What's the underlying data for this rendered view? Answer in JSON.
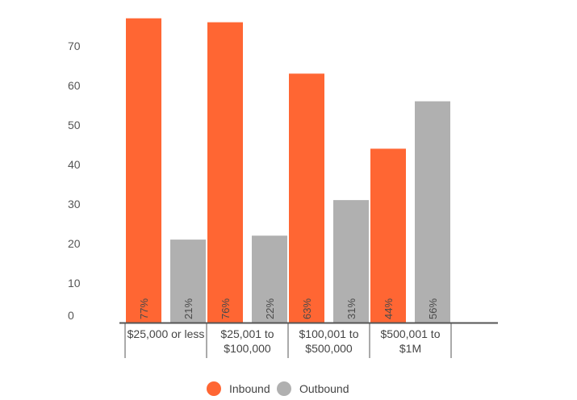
{
  "chart_data": {
    "type": "bar",
    "categories": [
      [
        "$25,000 or less"
      ],
      [
        "$25,001 to",
        "$100,000"
      ],
      [
        "$100,001 to",
        "$500,000"
      ],
      [
        "$500,001 to",
        "$1M"
      ]
    ],
    "series": [
      {
        "name": "Inbound",
        "values": [
          77,
          76,
          63,
          44
        ],
        "labels": [
          "77%",
          "76%",
          "63%",
          "44%"
        ],
        "color": "#ff6633"
      },
      {
        "name": "Outbound",
        "values": [
          21,
          22,
          31,
          56
        ],
        "labels": [
          "21%",
          "22%",
          "31%",
          "56%"
        ],
        "color": "#b0b0b0"
      }
    ],
    "yticks": [
      0,
      10,
      20,
      30,
      40,
      50,
      60,
      70
    ],
    "ylim": [
      0,
      77
    ],
    "title": "",
    "xlabel": "",
    "ylabel": "",
    "grid": false,
    "legend_position": "bottom-center",
    "axis_color": "#555555"
  }
}
